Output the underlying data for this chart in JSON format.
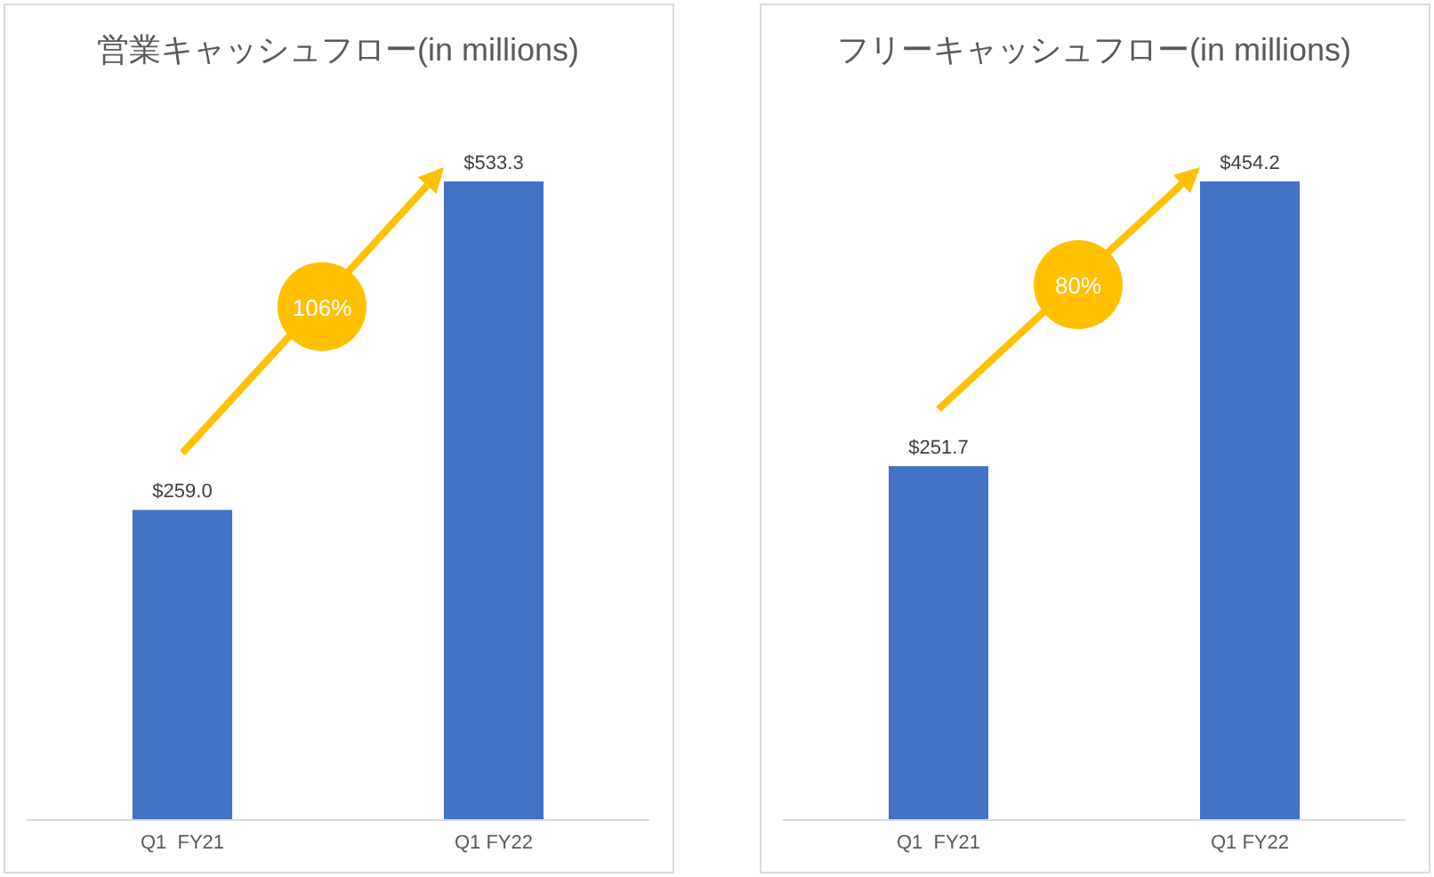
{
  "chart_data": [
    {
      "type": "bar",
      "title": "営業キャッシュフロー(in millions)",
      "categories": [
        "Q1  FY21",
        "Q1 FY22"
      ],
      "values": [
        259.0,
        533.3
      ],
      "value_labels": [
        "$259.0",
        "$533.3"
      ],
      "color": "#4472c4",
      "annotations": [
        "106%"
      ]
    },
    {
      "type": "bar",
      "title": "フリーキャッシュフロー(in millions)",
      "categories": [
        "Q1  FY21",
        "Q1 FY22"
      ],
      "values": [
        251.7,
        454.2
      ],
      "value_labels": [
        "$251.7",
        "$454.2"
      ],
      "color": "#4472c4",
      "annotations": [
        "80%"
      ]
    }
  ]
}
